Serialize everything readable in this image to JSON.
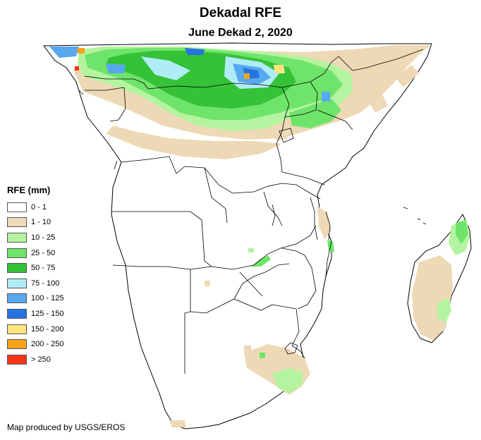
{
  "title": "Dekadal RFE",
  "subtitle": "June Dekad 2, 2020",
  "legend": {
    "title": "RFE (mm)",
    "classes": [
      {
        "label": "0 - 1",
        "color": "#ffffff"
      },
      {
        "label": "1 - 10",
        "color": "#eed9b6"
      },
      {
        "label": "10 - 25",
        "color": "#b4f4a0"
      },
      {
        "label": "25 - 50",
        "color": "#6fe46a"
      },
      {
        "label": "50 - 75",
        "color": "#35c238"
      },
      {
        "label": "75 - 100",
        "color": "#b0ecf6"
      },
      {
        "label": "100 - 125",
        "color": "#58a8ee"
      },
      {
        "label": "125 - 150",
        "color": "#2673e4"
      },
      {
        "label": "150 - 200",
        "color": "#fde480"
      },
      {
        "label": "200 - 250",
        "color": "#f8a418"
      },
      {
        "label": "> 250",
        "color": "#f43414"
      }
    ]
  },
  "credit": "Map produced by USGS/EROS"
}
